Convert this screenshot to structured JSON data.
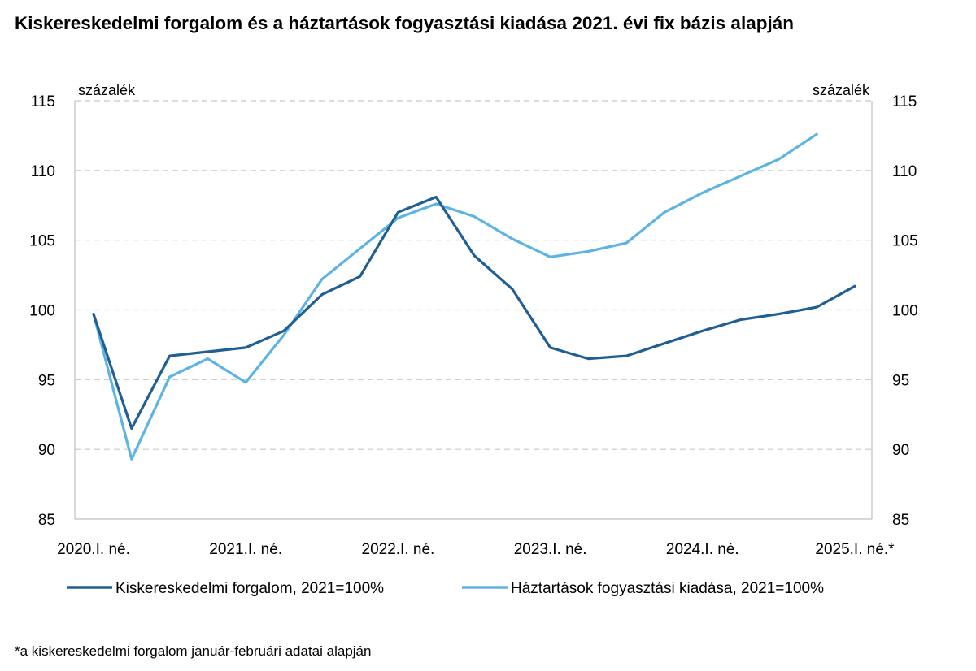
{
  "chart_data": {
    "type": "line",
    "title": "Kiskereskedelmi forgalom és a háztartások fogyasztási kiadása 2021. évi fix bázis alapján",
    "ylabel_left": "százalék",
    "ylabel_right": "százalék",
    "ylim": [
      85,
      115
    ],
    "yticks": [
      85,
      90,
      95,
      100,
      105,
      110,
      115
    ],
    "y_tick_labels": [
      "85",
      "90",
      "95",
      "100",
      "105",
      "110",
      "115"
    ],
    "x_tick_labels": [
      "2020.I. né.",
      "2021.I. né.",
      "2022.I. né.",
      "2023.I. né.",
      "2024.I. né.",
      "2025.I. né.*"
    ],
    "x_tick_positions": [
      0,
      4,
      8,
      12,
      16,
      20
    ],
    "grid": true,
    "legend": "bottom",
    "series": [
      {
        "name": "Kiskereskedelmi forgalom, 2021=100%",
        "color": "#1f5f94",
        "values": [
          99.7,
          91.5,
          96.7,
          97.0,
          97.3,
          98.5,
          101.1,
          102.4,
          107.0,
          108.1,
          103.9,
          101.5,
          97.3,
          96.5,
          96.7,
          97.6,
          98.5,
          99.3,
          99.7,
          100.2,
          101.7
        ]
      },
      {
        "name": "Háztartások fogyasztási kiadása, 2021=100%",
        "color": "#5db4e2",
        "values": [
          99.7,
          89.3,
          95.2,
          96.5,
          94.8,
          98.2,
          102.2,
          104.4,
          106.6,
          107.6,
          106.7,
          105.1,
          103.8,
          104.2,
          104.8,
          107.0,
          108.4,
          109.6,
          110.8,
          112.6,
          null
        ]
      }
    ]
  },
  "footnote": "*a kiskereskedelmi forgalom január-februári adatai alapján"
}
